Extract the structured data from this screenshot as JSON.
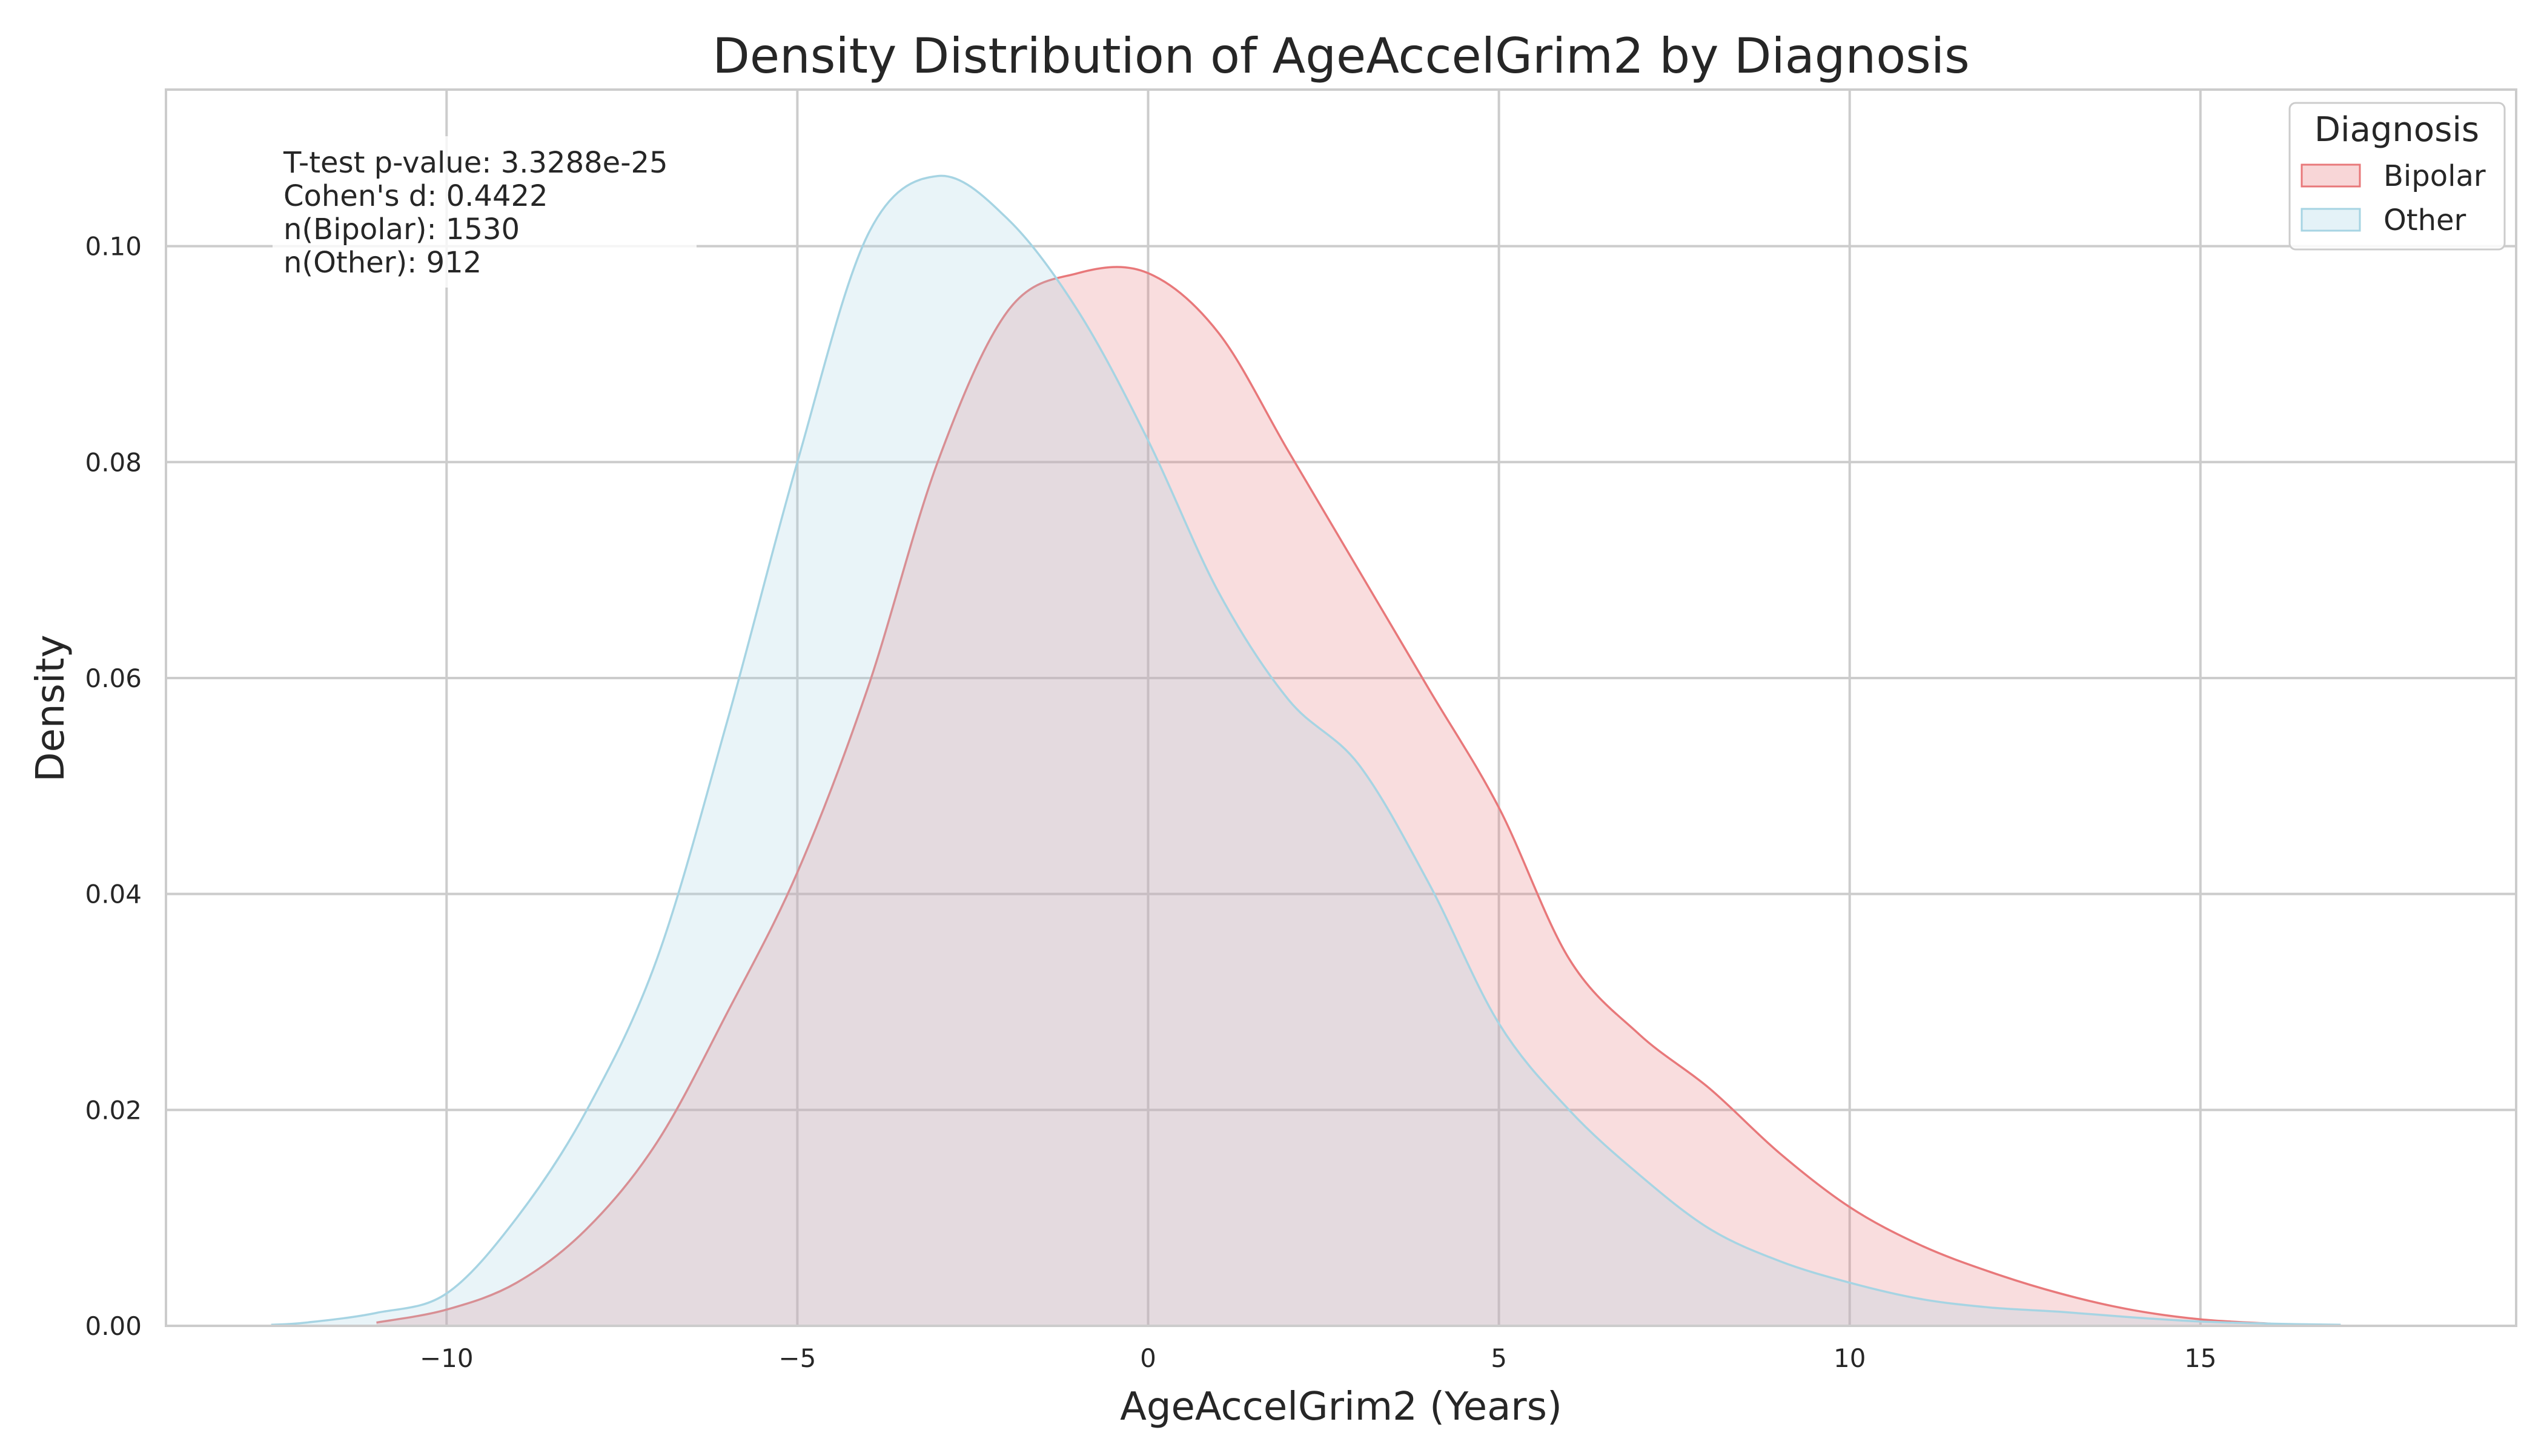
{
  "chart_data": {
    "type": "area",
    "title": "Density Distribution of AgeAccelGrim2 by Diagnosis",
    "xlabel": "AgeAccelGrim2 (Years)",
    "ylabel": "Density",
    "xlim": [
      -14,
      19.5
    ],
    "ylim": [
      0,
      0.1145
    ],
    "xticks": [
      -10,
      -5,
      0,
      5,
      10,
      15
    ],
    "xtick_labels": [
      "−10",
      "−5",
      "0",
      "5",
      "10",
      "15"
    ],
    "yticks": [
      0,
      0.02,
      0.04,
      0.06,
      0.08,
      0.1
    ],
    "ytick_labels": [
      "0.00",
      "0.02",
      "0.04",
      "0.06",
      "0.08",
      "0.10"
    ],
    "grid": true,
    "legend": {
      "title": "Diagnosis",
      "placement": "top-right",
      "entries": [
        "Bipolar",
        "Other"
      ]
    },
    "annotations": [
      "T-test p-value: 3.3288e-25",
      "Cohen's d: 0.4422",
      "n(Bipolar): 1530",
      "n(Other): 912"
    ],
    "series": [
      {
        "name": "Bipolar",
        "color": "#e8787a",
        "fill": "#f8d2d4",
        "x": [
          -11,
          -10,
          -9,
          -8,
          -7,
          -6,
          -5,
          -4,
          -3,
          -2,
          -1,
          0,
          1,
          2,
          3,
          4,
          5,
          6,
          7,
          8,
          9,
          10,
          11,
          12,
          13,
          14,
          15,
          16
        ],
        "y": [
          0.0003,
          0.0015,
          0.004,
          0.009,
          0.017,
          0.029,
          0.042,
          0.059,
          0.08,
          0.094,
          0.0975,
          0.0975,
          0.092,
          0.081,
          0.07,
          0.059,
          0.048,
          0.034,
          0.027,
          0.022,
          0.016,
          0.011,
          0.0075,
          0.005,
          0.003,
          0.0015,
          0.0006,
          0.0002
        ]
      },
      {
        "name": "Other",
        "color": "#a6d4e3",
        "fill": "#e0f1f4",
        "x": [
          -12.5,
          -12,
          -11,
          -10,
          -9,
          -8,
          -7,
          -6,
          -5,
          -4,
          -3,
          -2,
          -1,
          0,
          1,
          2,
          3,
          4,
          5,
          6,
          7,
          8,
          9,
          10,
          11,
          12,
          13,
          14,
          15,
          16,
          17
        ],
        "y": [
          0.0001,
          0.0003,
          0.0012,
          0.003,
          0.01,
          0.02,
          0.034,
          0.056,
          0.08,
          0.101,
          0.1065,
          0.1025,
          0.094,
          0.082,
          0.068,
          0.058,
          0.052,
          0.041,
          0.028,
          0.02,
          0.014,
          0.009,
          0.006,
          0.004,
          0.0025,
          0.0017,
          0.0013,
          0.0008,
          0.0004,
          0.0002,
          0.0001
        ]
      }
    ]
  }
}
